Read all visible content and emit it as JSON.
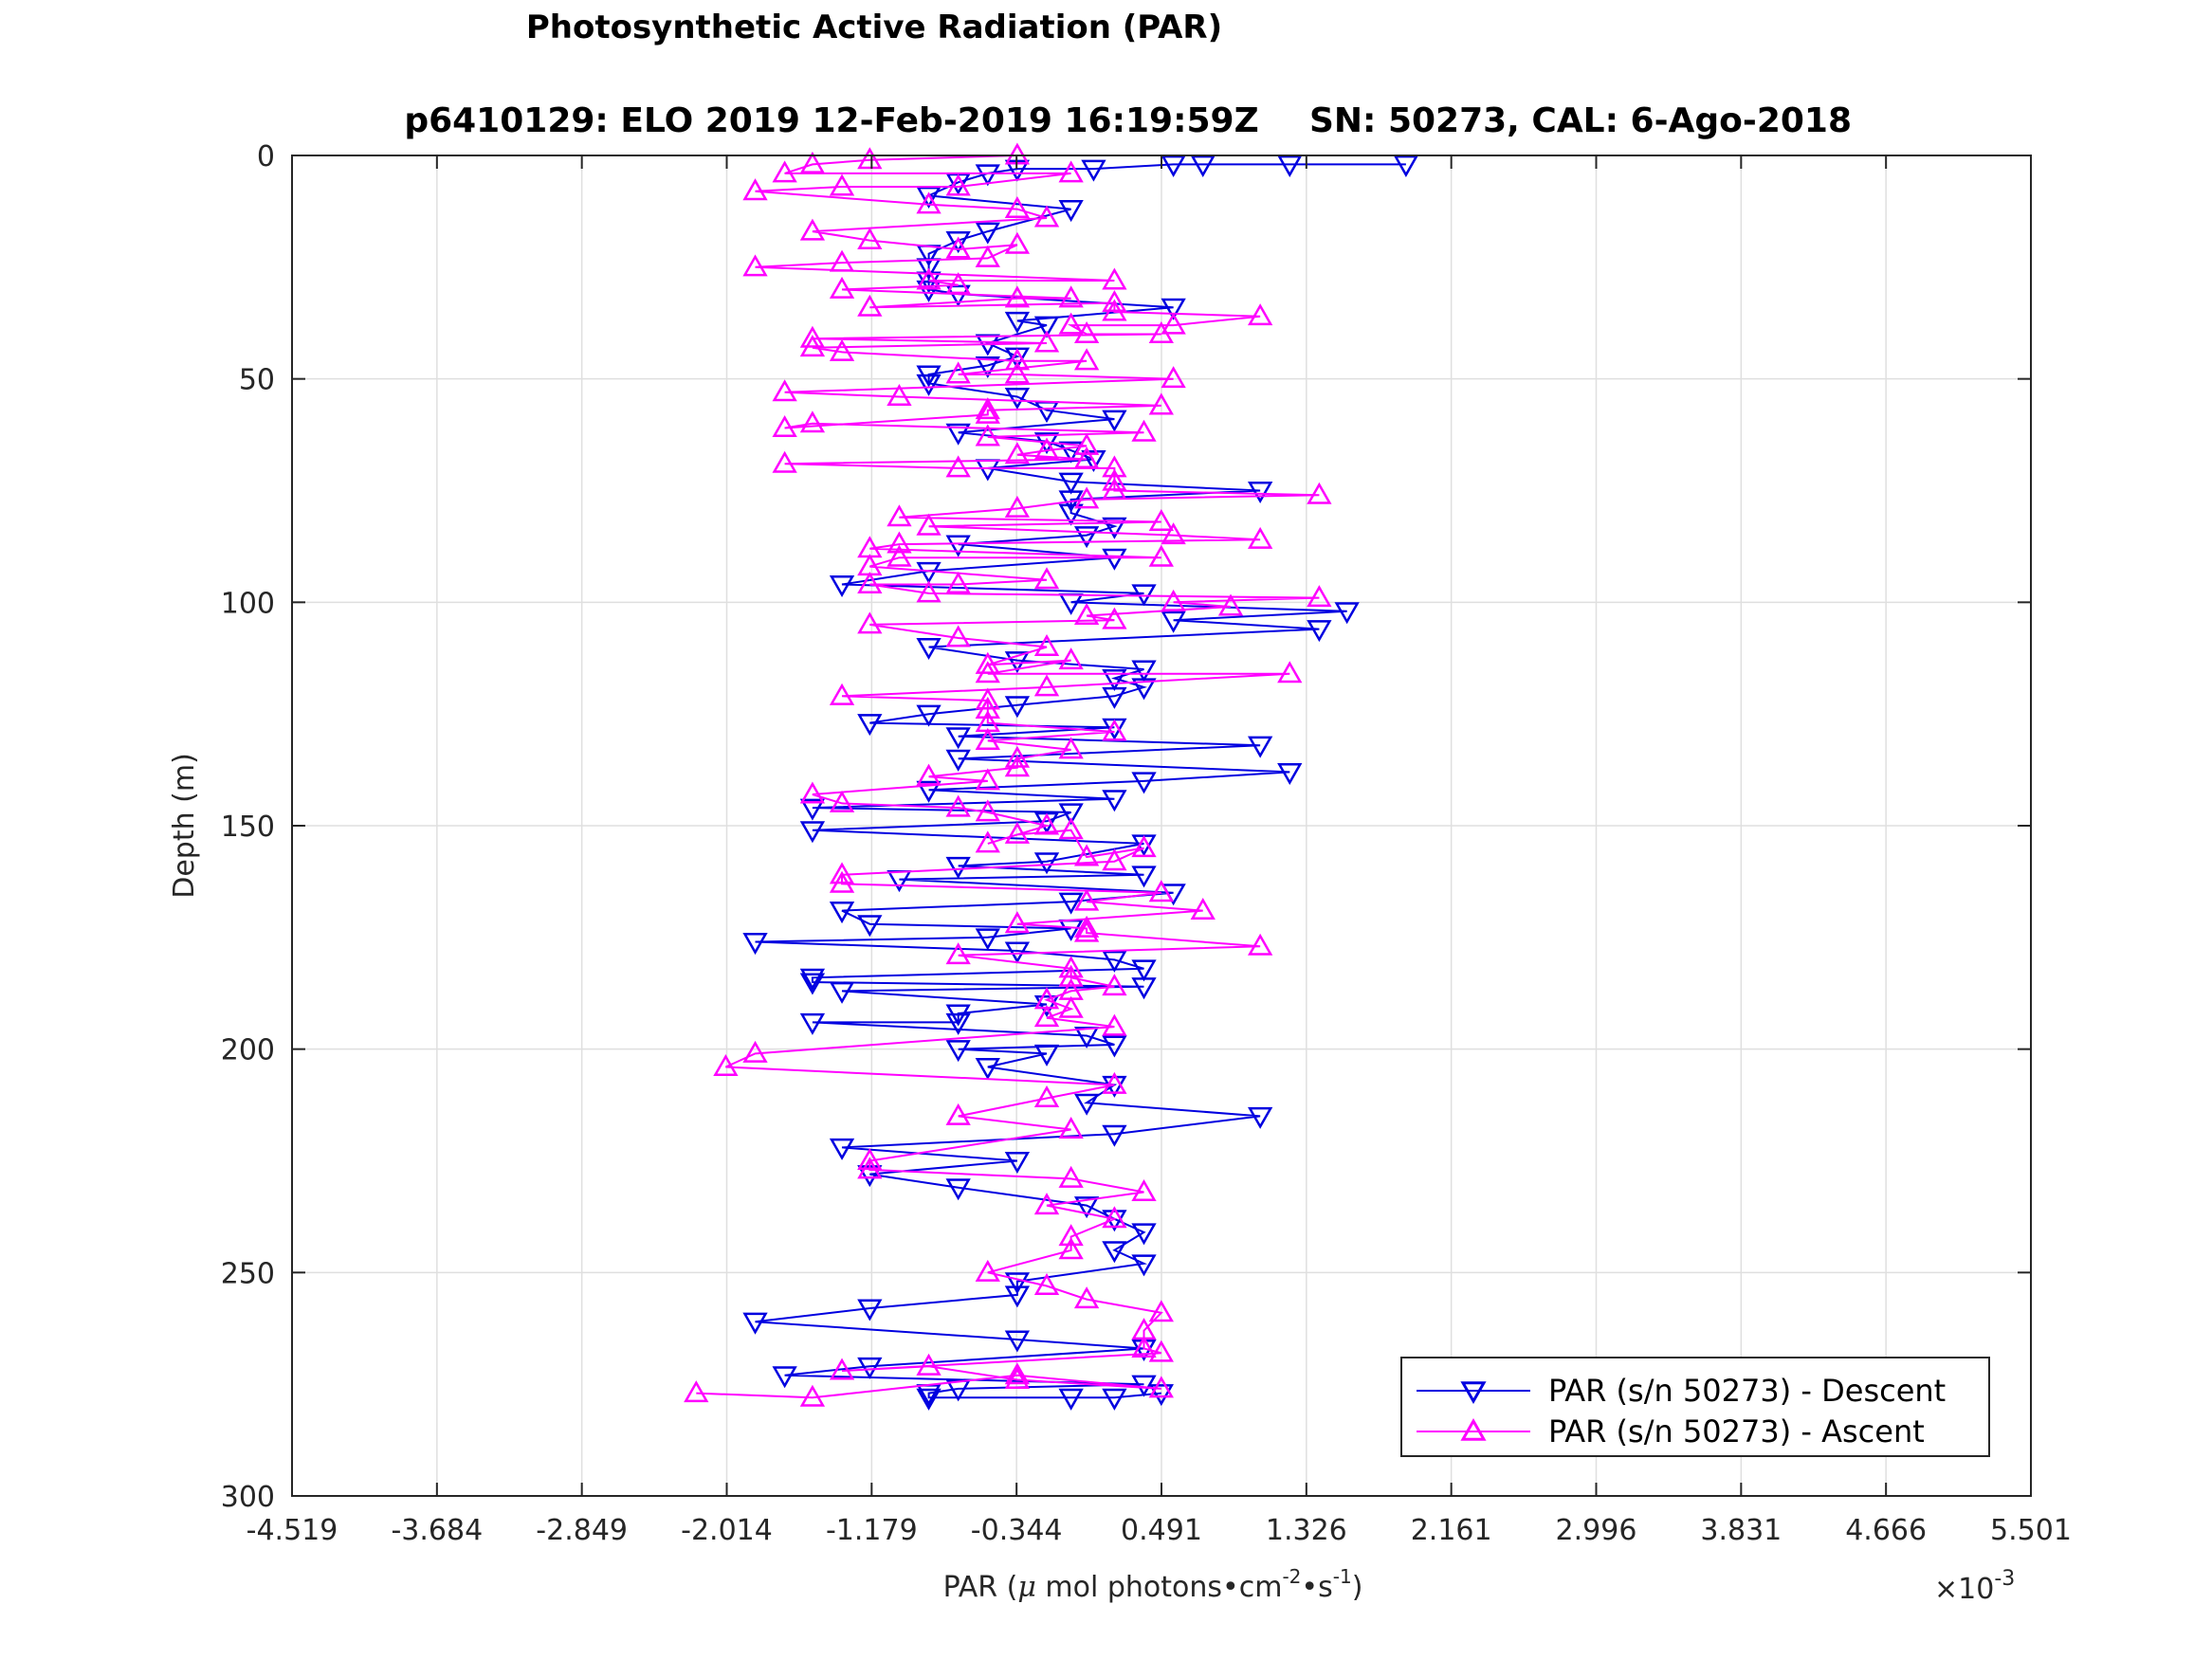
{
  "chart_data": {
    "type": "scatter",
    "title": "Photosynthetic Active Radiation (PAR)",
    "subtitle_left": "p6410129: ELO 2019 12-Feb-2019 16:19:59Z",
    "subtitle_right": "SN: 50273, CAL: 6-Ago-2018",
    "xlabel_main": "PAR (",
    "xlabel_mu": "μ",
    "xlabel_mid": " mol photons•cm",
    "xlabel_sup1": "-2",
    "xlabel_mid2": "•s",
    "xlabel_sup2": "-1",
    "xlabel_end": ")",
    "x_multiplier_base": "×10",
    "x_multiplier_exp": "-3",
    "ylabel": "Depth (m)",
    "xlim": [
      -4.519,
      5.501
    ],
    "ylim": [
      0,
      300
    ],
    "y_reversed": true,
    "grid": true,
    "legend_position": "bottom-right",
    "xticks": [
      -4.519,
      -3.684,
      -2.849,
      -2.014,
      -1.179,
      -0.344,
      0.491,
      1.326,
      2.161,
      2.996,
      3.831,
      4.666,
      5.501
    ],
    "xtick_labels": [
      "-4.519",
      "-3.684",
      "-2.849",
      "-2.014",
      "-1.179",
      "-0.344",
      "0.491",
      "1.326",
      "2.161",
      "2.996",
      "3.831",
      "4.666",
      "5.501"
    ],
    "yticks": [
      0,
      50,
      100,
      150,
      200,
      250,
      300
    ],
    "ytick_labels": [
      "0",
      "50",
      "100",
      "150",
      "200",
      "250",
      "300"
    ],
    "series": [
      {
        "name": "PAR (s/n 50273) - Descent",
        "color": "#0000e0",
        "marker": "triangle-down",
        "points": [
          [
            1.9,
            2
          ],
          [
            1.23,
            2
          ],
          [
            0.73,
            2
          ],
          [
            0.56,
            2
          ],
          [
            0.1,
            3
          ],
          [
            -0.34,
            3
          ],
          [
            -0.51,
            4
          ],
          [
            -0.68,
            6
          ],
          [
            -0.85,
            9
          ],
          [
            -0.03,
            12
          ],
          [
            -0.51,
            17
          ],
          [
            -0.68,
            19
          ],
          [
            -0.85,
            22
          ],
          [
            -0.85,
            25
          ],
          [
            -0.85,
            28
          ],
          [
            -0.85,
            30
          ],
          [
            -0.68,
            31
          ],
          [
            0.56,
            34
          ],
          [
            -0.34,
            37
          ],
          [
            -0.17,
            38
          ],
          [
            -0.51,
            42
          ],
          [
            -0.34,
            45
          ],
          [
            -0.51,
            47
          ],
          [
            -0.85,
            49
          ],
          [
            -0.85,
            51
          ],
          [
            -0.34,
            54
          ],
          [
            -0.17,
            57
          ],
          [
            0.22,
            59
          ],
          [
            -0.68,
            62
          ],
          [
            -0.17,
            64
          ],
          [
            -0.03,
            66
          ],
          [
            0.1,
            68
          ],
          [
            -0.51,
            70
          ],
          [
            -0.03,
            73
          ],
          [
            1.06,
            75
          ],
          [
            -0.03,
            77
          ],
          [
            -0.03,
            80
          ],
          [
            0.22,
            83
          ],
          [
            0.06,
            85
          ],
          [
            -0.68,
            87
          ],
          [
            0.22,
            90
          ],
          [
            -0.85,
            93
          ],
          [
            -1.35,
            96
          ],
          [
            0.39,
            98
          ],
          [
            -0.03,
            100
          ],
          [
            1.56,
            102
          ],
          [
            0.56,
            104
          ],
          [
            1.4,
            106
          ],
          [
            -0.85,
            110
          ],
          [
            -0.34,
            113
          ],
          [
            0.39,
            115
          ],
          [
            0.22,
            117
          ],
          [
            0.39,
            119
          ],
          [
            0.22,
            121
          ],
          [
            -0.34,
            123
          ],
          [
            -0.85,
            125
          ],
          [
            -1.19,
            127
          ],
          [
            0.22,
            128
          ],
          [
            -0.68,
            130
          ],
          [
            1.06,
            132
          ],
          [
            -0.68,
            135
          ],
          [
            1.23,
            138
          ],
          [
            0.39,
            140
          ],
          [
            -0.85,
            142
          ],
          [
            0.22,
            144
          ],
          [
            -1.52,
            146
          ],
          [
            -0.03,
            147
          ],
          [
            -0.17,
            149
          ],
          [
            -1.52,
            151
          ],
          [
            0.39,
            154
          ],
          [
            -0.17,
            158
          ],
          [
            -0.68,
            159
          ],
          [
            0.39,
            161
          ],
          [
            -1.02,
            162
          ],
          [
            0.56,
            165
          ],
          [
            -0.03,
            167
          ],
          [
            -1.35,
            169
          ],
          [
            -1.19,
            172
          ],
          [
            -0.03,
            173
          ],
          [
            -0.51,
            175
          ],
          [
            -1.85,
            176
          ],
          [
            -0.34,
            178
          ],
          [
            0.22,
            180
          ],
          [
            0.39,
            182
          ],
          [
            -1.52,
            184
          ],
          [
            -1.52,
            185
          ],
          [
            0.39,
            186
          ],
          [
            -1.35,
            187
          ],
          [
            -0.17,
            190
          ],
          [
            -0.68,
            192
          ],
          [
            -0.68,
            194
          ],
          [
            -1.52,
            194
          ],
          [
            0.06,
            197
          ],
          [
            0.22,
            199
          ],
          [
            -0.68,
            200
          ],
          [
            -0.17,
            201
          ],
          [
            -0.51,
            204
          ],
          [
            0.22,
            208
          ],
          [
            0.06,
            212
          ],
          [
            1.06,
            215
          ],
          [
            0.22,
            219
          ],
          [
            -1.35,
            222
          ],
          [
            -0.34,
            225
          ],
          [
            -1.19,
            228
          ],
          [
            -0.68,
            231
          ],
          [
            0.06,
            235
          ],
          [
            0.22,
            238
          ],
          [
            0.39,
            241
          ],
          [
            0.22,
            245
          ],
          [
            0.39,
            248
          ],
          [
            -0.34,
            252
          ],
          [
            -0.34,
            255
          ],
          [
            -1.19,
            258
          ],
          [
            -1.85,
            261
          ],
          [
            -0.34,
            265
          ],
          [
            0.39,
            267
          ],
          [
            -1.19,
            271
          ],
          [
            -1.68,
            273
          ],
          [
            0.39,
            275
          ],
          [
            -0.68,
            276
          ],
          [
            -0.85,
            277
          ],
          [
            -0.85,
            278
          ],
          [
            -0.03,
            278
          ],
          [
            0.22,
            278
          ],
          [
            0.49,
            277
          ]
        ]
      },
      {
        "name": "PAR (s/n 50273) - Ascent",
        "color": "#ff00ff",
        "points": [
          [
            -2.19,
            277
          ],
          [
            -1.52,
            278
          ],
          [
            -0.34,
            273
          ],
          [
            0.49,
            276
          ],
          [
            -0.34,
            274
          ],
          [
            -0.85,
            271
          ],
          [
            -1.35,
            272
          ],
          [
            0.49,
            268
          ],
          [
            0.39,
            267
          ],
          [
            0.39,
            263
          ],
          [
            0.49,
            259
          ],
          [
            0.06,
            256
          ],
          [
            -0.17,
            253
          ],
          [
            -0.51,
            250
          ],
          [
            -0.03,
            245
          ],
          [
            -0.03,
            242
          ],
          [
            0.22,
            238
          ],
          [
            -0.17,
            235
          ],
          [
            0.39,
            232
          ],
          [
            -0.03,
            229
          ],
          [
            -1.19,
            227
          ],
          [
            -1.19,
            225
          ],
          [
            -0.03,
            218
          ],
          [
            -0.68,
            215
          ],
          [
            -0.17,
            211
          ],
          [
            0.22,
            208
          ],
          [
            -2.02,
            204
          ],
          [
            -1.85,
            201
          ],
          [
            0.22,
            195
          ],
          [
            -0.17,
            193
          ],
          [
            -0.03,
            191
          ],
          [
            -0.17,
            189
          ],
          [
            -0.03,
            187
          ],
          [
            0.22,
            186
          ],
          [
            -0.03,
            184
          ],
          [
            -0.03,
            182
          ],
          [
            -0.68,
            179
          ],
          [
            1.06,
            177
          ],
          [
            0.06,
            174
          ],
          [
            0.06,
            173
          ],
          [
            -0.34,
            172
          ],
          [
            0.73,
            169
          ],
          [
            0.06,
            167
          ],
          [
            0.49,
            165
          ],
          [
            -1.35,
            163
          ],
          [
            -1.35,
            161
          ],
          [
            0.22,
            158
          ],
          [
            0.39,
            155
          ],
          [
            0.06,
            157
          ],
          [
            -0.03,
            151
          ],
          [
            -0.34,
            152
          ],
          [
            -0.51,
            154
          ],
          [
            -0.17,
            150
          ],
          [
            -0.51,
            147
          ],
          [
            -0.68,
            146
          ],
          [
            -1.35,
            145
          ],
          [
            -1.52,
            143
          ],
          [
            -0.51,
            140
          ],
          [
            -0.85,
            139
          ],
          [
            -0.34,
            137
          ],
          [
            -0.34,
            135
          ],
          [
            -0.03,
            133
          ],
          [
            -0.51,
            131
          ],
          [
            0.22,
            129
          ],
          [
            -0.51,
            127
          ],
          [
            -0.51,
            124
          ],
          [
            -0.51,
            122
          ],
          [
            -1.35,
            121
          ],
          [
            -0.17,
            119
          ],
          [
            1.23,
            116
          ],
          [
            -0.51,
            116
          ],
          [
            -0.03,
            113
          ],
          [
            -0.51,
            114
          ],
          [
            -0.17,
            110
          ],
          [
            -0.68,
            108
          ],
          [
            -1.19,
            105
          ],
          [
            0.22,
            104
          ],
          [
            0.06,
            103
          ],
          [
            0.89,
            101
          ],
          [
            0.56,
            100
          ],
          [
            1.4,
            99
          ],
          [
            -0.85,
            98
          ],
          [
            -1.19,
            96
          ],
          [
            -0.68,
            96
          ],
          [
            -0.17,
            95
          ],
          [
            -1.19,
            92
          ],
          [
            -1.02,
            90
          ],
          [
            0.49,
            90
          ],
          [
            -1.19,
            88
          ],
          [
            -1.02,
            87
          ],
          [
            1.06,
            86
          ],
          [
            0.56,
            85
          ],
          [
            -0.85,
            83
          ],
          [
            0.49,
            82
          ],
          [
            -1.02,
            81
          ],
          [
            -0.34,
            79
          ],
          [
            0.06,
            77
          ],
          [
            1.4,
            76
          ],
          [
            0.22,
            75
          ],
          [
            0.22,
            73
          ],
          [
            0.22,
            70
          ],
          [
            -0.68,
            70
          ],
          [
            -1.68,
            69
          ],
          [
            0.06,
            68
          ],
          [
            -0.34,
            67
          ],
          [
            -0.17,
            66
          ],
          [
            0.06,
            65
          ],
          [
            -0.51,
            63
          ],
          [
            0.39,
            62
          ],
          [
            -1.52,
            60
          ],
          [
            -1.68,
            61
          ],
          [
            -0.51,
            58
          ],
          [
            -0.51,
            57
          ],
          [
            0.49,
            56
          ],
          [
            -1.02,
            54
          ],
          [
            -1.68,
            53
          ],
          [
            0.56,
            50
          ],
          [
            -0.34,
            49
          ],
          [
            -0.68,
            49
          ],
          [
            0.06,
            46
          ],
          [
            -0.34,
            46
          ],
          [
            -1.35,
            44
          ],
          [
            -1.52,
            43
          ],
          [
            -0.17,
            42
          ],
          [
            -1.52,
            41
          ],
          [
            0.49,
            40
          ],
          [
            0.06,
            40
          ],
          [
            -0.03,
            38
          ],
          [
            0.56,
            38
          ],
          [
            1.06,
            36
          ],
          [
            0.22,
            35
          ],
          [
            0.22,
            33
          ],
          [
            -1.19,
            34
          ],
          [
            -0.34,
            32
          ],
          [
            -0.03,
            32
          ],
          [
            -1.35,
            30
          ],
          [
            -0.68,
            29
          ],
          [
            -0.85,
            28
          ],
          [
            0.22,
            28
          ],
          [
            -1.85,
            25
          ],
          [
            -1.35,
            24
          ],
          [
            -0.51,
            23
          ],
          [
            -0.34,
            20
          ],
          [
            -0.68,
            21
          ],
          [
            -1.19,
            19
          ],
          [
            -1.52,
            17
          ],
          [
            -0.17,
            14
          ],
          [
            -0.34,
            12
          ],
          [
            -0.85,
            11
          ],
          [
            -1.85,
            8
          ],
          [
            -1.35,
            7
          ],
          [
            -0.68,
            7
          ],
          [
            -0.03,
            4
          ],
          [
            -1.68,
            4
          ],
          [
            -1.52,
            2
          ],
          [
            -1.19,
            1
          ],
          [
            -0.34,
            0
          ]
        ],
        "marker": "triangle-up"
      }
    ]
  }
}
